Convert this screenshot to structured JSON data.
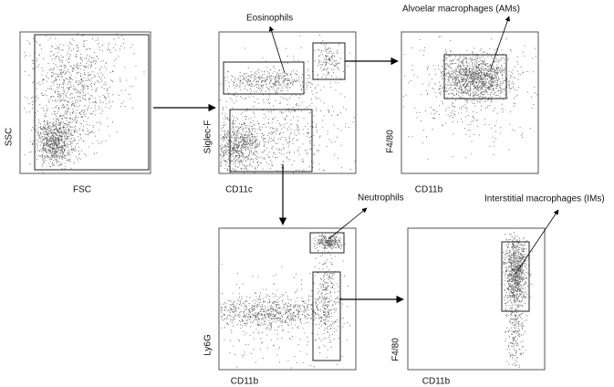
{
  "panels": [
    {
      "id": "fsc-ssc",
      "x_label": "FSC",
      "y_label": "SSC"
    },
    {
      "id": "cd11c-siglecf",
      "x_label": "CD11c",
      "y_label": "Siglec-F",
      "gate_label": "Eosinophils"
    },
    {
      "id": "cd11b-f480-am",
      "x_label": "CD11b",
      "y_label": "F4/80",
      "gate_label": "Alvoelar  macrophages (AMs)"
    },
    {
      "id": "cd11b-ly6g",
      "x_label": "CD11b",
      "y_label": "Ly6G",
      "gate_label": "Neutrophils"
    },
    {
      "id": "cd11b-f480-im",
      "x_label": "CD11b",
      "y_label": "F4/80",
      "gate_label": "Interstitial macrophages (IMs)"
    }
  ]
}
